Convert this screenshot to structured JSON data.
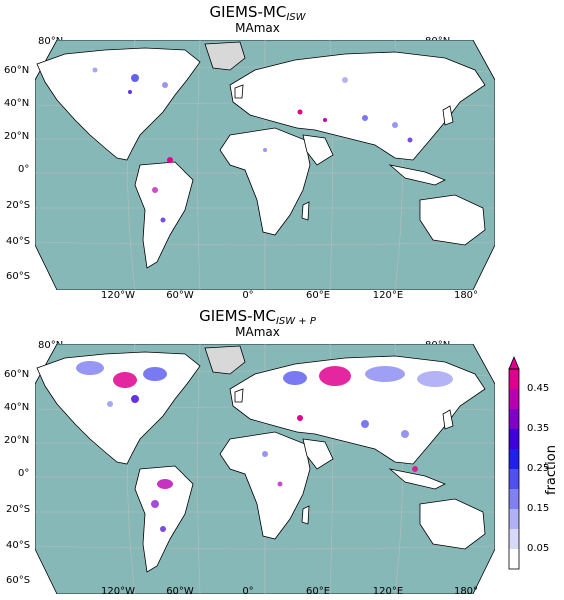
{
  "maps": [
    {
      "title_main": "GIEMS-MC",
      "title_sub": "ISW",
      "subtitle": "MAmax",
      "lat_labels": [
        "80°N",
        "60°N",
        "40°N",
        "20°N",
        "0°",
        "20°S",
        "40°S",
        "60°S"
      ],
      "lat_right": "80°N",
      "lon_labels": [
        "120°W",
        "60°W",
        "0°",
        "60°E",
        "120°E",
        "180°"
      ]
    },
    {
      "title_main": "GIEMS-MC",
      "title_sub": "ISW + P",
      "subtitle": "MAmax",
      "lat_labels": [
        "80°N",
        "60°N",
        "40°N",
        "20°N",
        "0°",
        "20°S",
        "40°S",
        "60°S"
      ],
      "lat_right": "80°N",
      "lon_labels": [
        "120°W",
        "60°W",
        "0°",
        "60°E",
        "120°E",
        "180°"
      ]
    }
  ],
  "colorbar": {
    "label": "fraction",
    "ticks": [
      "0.45",
      "0.35",
      "0.25",
      "0.15",
      "0.05"
    ],
    "range": [
      0,
      0.5
    ],
    "extend": "max",
    "colors": [
      "#ffffff",
      "#d8d8f8",
      "#b0b0f5",
      "#8080f0",
      "#5050ee",
      "#2020e8",
      "#4000d8",
      "#8000c8",
      "#b800b0",
      "#e00090"
    ]
  },
  "colors": {
    "ocean": "#86b8b8",
    "land": "#ffffff",
    "ice": "#d8d8d8",
    "grid": "#bbbbbb",
    "coast": "#000000"
  }
}
